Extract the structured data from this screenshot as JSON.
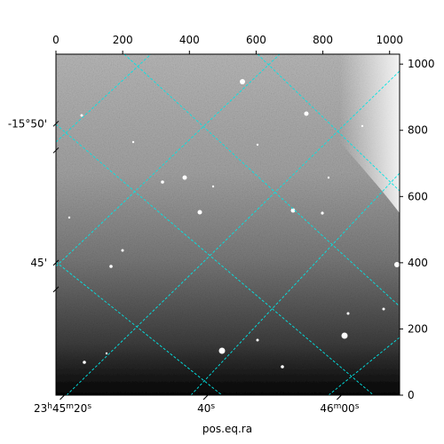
{
  "chart_data": {
    "type": "image",
    "xlabel": "pos.eq.ra",
    "ylabel": "",
    "pixel_axes": {
      "x": {
        "range": [
          0,
          1030
        ],
        "ticks": [
          0,
          200,
          400,
          600,
          800,
          1000
        ],
        "position": "top"
      },
      "y": {
        "range": [
          0,
          1030
        ],
        "ticks": [
          0,
          200,
          400,
          600,
          800,
          1000
        ],
        "position": "right"
      }
    },
    "world_axes": {
      "ra_ticks": [
        {
          "major": "23",
          "h": "h",
          "m_val": "45",
          "m": "m",
          "s_val": "20",
          "s": "s",
          "pix_x": 20
        },
        {
          "major": "",
          "h": "",
          "m_val": "",
          "m": "",
          "s_val": "40",
          "s": "s",
          "pix_x": 450
        },
        {
          "major": "",
          "h": "",
          "m_val": "46",
          "m": "m",
          "s_val": "00",
          "s": "s",
          "pix_x": 850
        }
      ],
      "dec_ticks": [
        {
          "label": "-15°50'",
          "pix_y": 820
        },
        {
          "label": "45'",
          "pix_y": 400
        }
      ]
    },
    "grid": {
      "on": true,
      "style": "dashed",
      "color": "#00e5e5"
    },
    "image": {
      "colormap": "gray",
      "description_free": true
    }
  }
}
